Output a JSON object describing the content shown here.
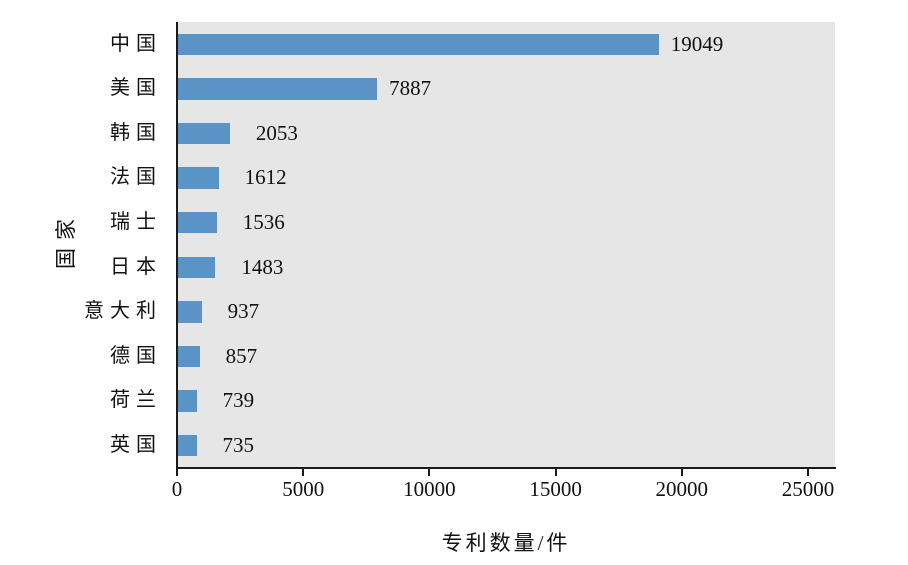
{
  "chart_data": {
    "type": "bar",
    "orientation": "horizontal",
    "title": "",
    "xlabel": "专利数量/件",
    "ylabel": "国家",
    "categories": [
      "中国",
      "美国",
      "韩国",
      "法国",
      "瑞士",
      "日本",
      "意大利",
      "德国",
      "荷兰",
      "英国"
    ],
    "values": [
      19049,
      7887,
      2053,
      1612,
      1536,
      1483,
      937,
      857,
      739,
      735
    ],
    "value_labels": [
      "19049",
      "7887",
      "2053",
      "1612",
      "1536",
      "1483",
      "937",
      "857",
      "739",
      "735"
    ],
    "xticks": [
      0,
      5000,
      10000,
      15000,
      20000,
      25000
    ],
    "xtick_labels": [
      "0",
      "5000",
      "10000",
      "15000",
      "20000",
      "25000"
    ],
    "xlim": [
      0,
      26070
    ],
    "grid": false,
    "legend": null,
    "bar_color": "#5a93c6",
    "plot_background": "#e6e6e6",
    "axis_color": "#1a1a1a",
    "text_color": "#111111"
  }
}
